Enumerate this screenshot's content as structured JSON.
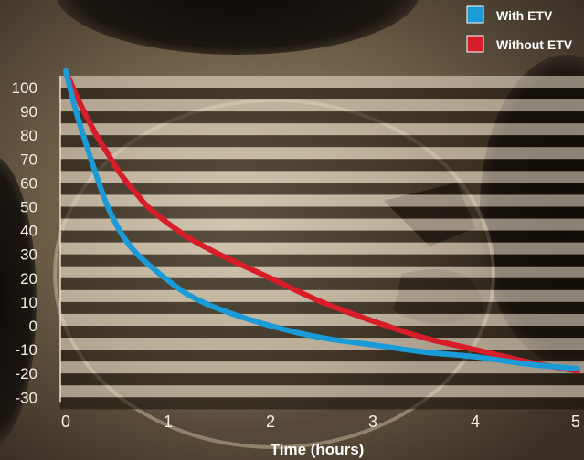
{
  "chart_data": {
    "type": "line",
    "x_label": "Time (hours)",
    "x_ticks": [
      "0",
      "1",
      "2",
      "3",
      "4",
      "5"
    ],
    "xlim": [
      0,
      5
    ],
    "y_ticks": [
      "100",
      "90",
      "80",
      "70",
      "60",
      "50",
      "40",
      "30",
      "20",
      "10",
      "0",
      "-10",
      "-20",
      "-30"
    ],
    "ylim": [
      -30,
      105
    ],
    "legend_position": "top-right",
    "grid": "horizontal bands",
    "series": [
      {
        "name": "With ETV",
        "color": "#1a9ad6",
        "x": [
          0,
          0.1,
          0.2,
          0.3,
          0.4,
          0.5,
          0.6,
          0.7,
          0.8,
          1.0,
          1.2,
          1.5,
          2.0,
          2.5,
          3.0,
          3.5,
          4.0,
          4.5,
          5.0
        ],
        "y": [
          107,
          90,
          76,
          63,
          51,
          42,
          35,
          30,
          26,
          19,
          13,
          7,
          0,
          -5,
          -8,
          -11,
          -13,
          -16,
          -18
        ]
      },
      {
        "name": "Without ETV",
        "color": "#d71d2a",
        "x": [
          0,
          0.1,
          0.2,
          0.3,
          0.4,
          0.5,
          0.6,
          0.7,
          0.8,
          1.0,
          1.2,
          1.5,
          2.0,
          2.5,
          3.0,
          3.5,
          4.0,
          4.5,
          5.0
        ],
        "y": [
          107,
          97,
          88,
          80,
          73,
          66,
          60,
          55,
          50,
          43,
          37,
          30,
          20,
          10,
          2,
          -5,
          -10,
          -15,
          -19
        ]
      }
    ]
  }
}
